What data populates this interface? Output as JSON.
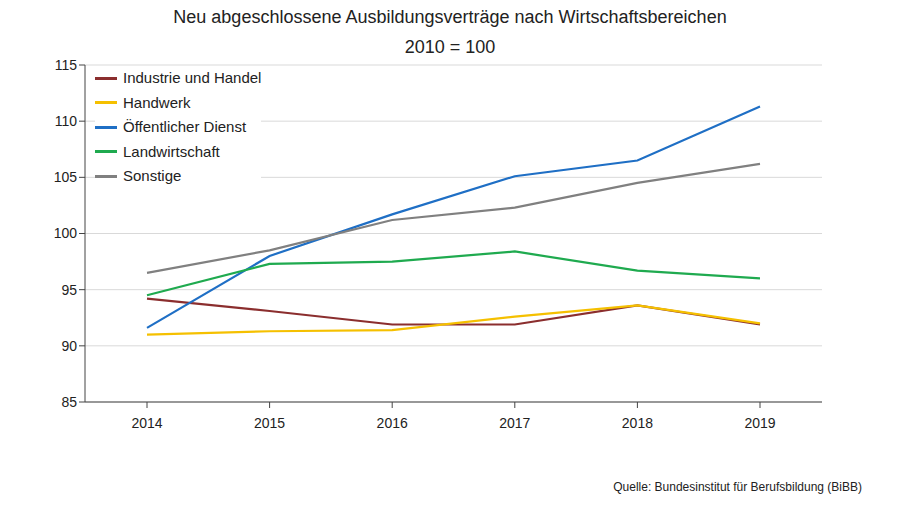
{
  "chart_data": {
    "type": "line",
    "title": "Neu abgeschlossene Ausbildungsverträge nach Wirtschaftsbereichen",
    "subtitle": "2010 = 100",
    "source": "Quelle: Bundesinstitut für Berufsbildung (BiBB)",
    "categories": [
      "2014",
      "2015",
      "2016",
      "2017",
      "2018",
      "2019"
    ],
    "series": [
      {
        "name": "Industrie und Handel",
        "color": "#8b2e2e",
        "values": [
          94.2,
          93.1,
          91.9,
          91.9,
          93.6,
          91.9
        ]
      },
      {
        "name": "Handwerk",
        "color": "#f5c000",
        "values": [
          91.0,
          91.3,
          91.4,
          92.6,
          93.6,
          92.0
        ]
      },
      {
        "name": "Öffentlicher Dienst",
        "color": "#1f6fc5",
        "values": [
          91.6,
          98.0,
          101.7,
          105.1,
          106.5,
          111.3
        ]
      },
      {
        "name": "Landwirtschaft",
        "color": "#1faa4f",
        "values": [
          94.5,
          97.3,
          97.5,
          98.4,
          96.7,
          96.0
        ]
      },
      {
        "name": "Sonstige",
        "color": "#808080",
        "values": [
          96.5,
          98.5,
          101.2,
          102.3,
          104.5,
          106.2
        ]
      }
    ],
    "ylim": [
      85,
      115
    ],
    "yticks": [
      85,
      90,
      95,
      100,
      105,
      110,
      115
    ],
    "grid": true,
    "legend": "upper left"
  }
}
